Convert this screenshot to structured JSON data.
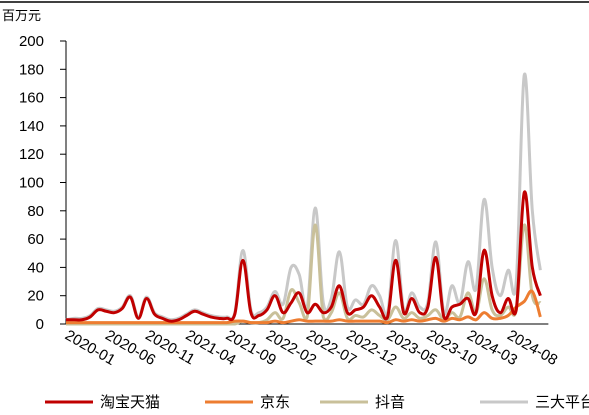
{
  "chart_data": {
    "type": "line",
    "unit": "百万元",
    "categories": [
      "2020-01",
      null,
      null,
      null,
      null,
      "2020-06",
      null,
      null,
      null,
      null,
      "2020-11",
      null,
      null,
      null,
      null,
      "2021-04",
      null,
      null,
      null,
      null,
      "2021-09",
      null,
      null,
      null,
      null,
      "2022-02",
      null,
      null,
      null,
      null,
      "2022-07",
      null,
      null,
      null,
      null,
      "2022-12",
      null,
      null,
      null,
      null,
      "2023-05",
      null,
      null,
      null,
      null,
      "2023-10",
      null,
      null,
      null,
      null,
      "2024-03",
      null,
      null,
      null,
      null,
      "2024-08",
      null,
      null,
      null,
      null
    ],
    "series": [
      {
        "name": "淘宝天猫",
        "color": "#c00000",
        "values": [
          3,
          3,
          3,
          5,
          10,
          9,
          8,
          11,
          19,
          4,
          18,
          7,
          4,
          2,
          3,
          6,
          9,
          7,
          5,
          4,
          4,
          7,
          45,
          8,
          6,
          10,
          20,
          8,
          15,
          22,
          8,
          14,
          8,
          12,
          27,
          8,
          10,
          12,
          20,
          12,
          5,
          45,
          8,
          18,
          8,
          12,
          47,
          5,
          12,
          14,
          18,
          8,
          52,
          20,
          8,
          18,
          10,
          93,
          40,
          20
        ]
      },
      {
        "name": "京东",
        "color": "#ed7d31",
        "values": [
          1,
          1,
          1,
          1,
          1,
          1,
          1,
          1,
          1,
          1,
          1,
          1,
          1,
          1,
          1,
          1,
          1,
          1,
          1,
          1,
          1,
          2,
          2,
          1,
          1,
          1,
          2,
          1,
          2,
          3,
          2,
          2,
          2,
          2,
          3,
          2,
          2,
          2,
          2,
          2,
          1,
          3,
          2,
          3,
          2,
          3,
          4,
          2,
          4,
          3,
          5,
          3,
          8,
          4,
          4,
          6,
          12,
          16,
          23,
          5
        ]
      },
      {
        "name": "抖音",
        "color": "#c9c09a",
        "values": [
          0,
          0,
          0,
          0,
          0,
          0,
          0,
          0,
          0,
          0,
          0,
          0,
          0,
          0,
          0,
          0,
          0,
          0,
          0,
          0,
          0,
          0,
          2,
          1,
          1,
          3,
          8,
          4,
          24,
          15,
          5,
          70,
          5,
          8,
          22,
          4,
          6,
          5,
          10,
          6,
          3,
          12,
          4,
          8,
          4,
          6,
          10,
          3,
          8,
          5,
          22,
          8,
          32,
          10,
          6,
          12,
          10,
          70,
          20,
          15
        ]
      },
      {
        "name": "三大平台",
        "color": "#c8c8c8",
        "values": [
          3,
          4,
          4,
          6,
          11,
          10,
          9,
          12,
          20,
          5,
          19,
          8,
          5,
          3,
          4,
          7,
          10,
          8,
          6,
          5,
          5,
          8,
          52,
          10,
          8,
          12,
          23,
          14,
          40,
          35,
          12,
          82,
          15,
          18,
          51,
          12,
          17,
          14,
          27,
          20,
          8,
          59,
          10,
          22,
          12,
          15,
          58,
          8,
          27,
          15,
          44,
          25,
          88,
          40,
          20,
          38,
          30,
          176,
          80,
          38
        ]
      }
    ],
    "ylim": [
      0,
      200
    ],
    "yticks": [
      0,
      20,
      40,
      60,
      80,
      100,
      120,
      140,
      160,
      180,
      200
    ]
  }
}
